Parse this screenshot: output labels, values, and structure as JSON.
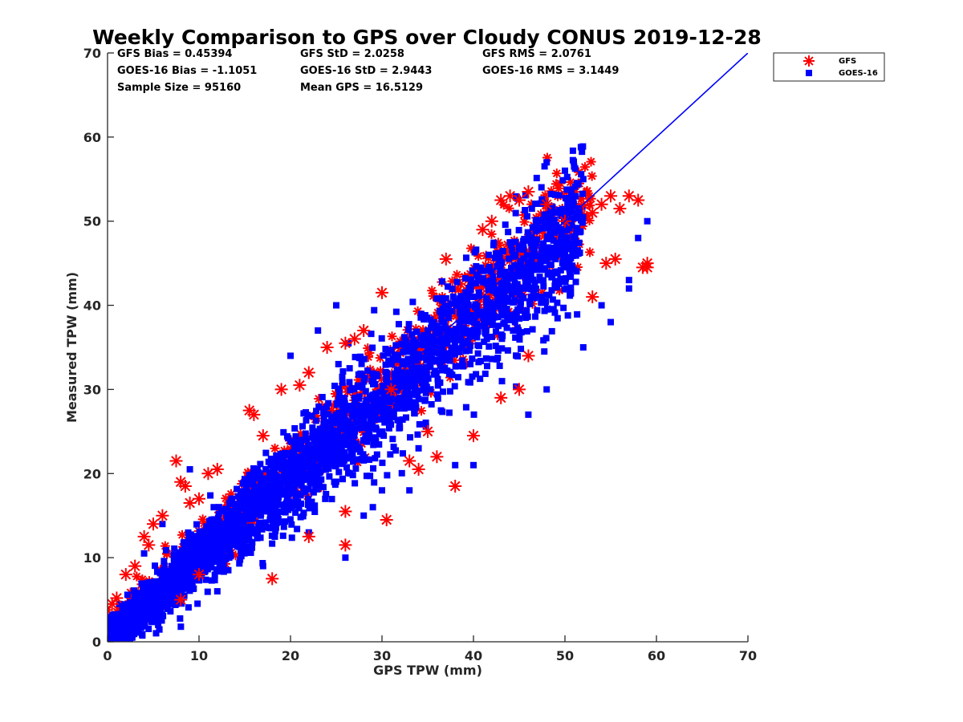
{
  "chart_data": {
    "type": "scatter",
    "title": "Weekly Comparison to GPS over Cloudy CONUS 2019-12-28",
    "xlabel": "GPS TPW (mm)",
    "ylabel": "Measured TPW (mm)",
    "xlim": [
      0,
      70
    ],
    "ylim": [
      0,
      70
    ],
    "xticks": [
      "0",
      "10",
      "20",
      "30",
      "40",
      "50",
      "60",
      "70"
    ],
    "yticks": [
      "0",
      "10",
      "20",
      "30",
      "40",
      "50",
      "60",
      "70"
    ],
    "grid": false,
    "legend_position": "outside-top-right",
    "stats": [
      [
        "GFS Bias = 0.45394",
        "GFS StD = 2.0258",
        "GFS RMS = 2.0761"
      ],
      [
        "GOES-16 Bias = -1.1051",
        "GOES-16 StD = 2.9443",
        "GOES-16 RMS = 3.1449"
      ],
      [
        "Sample Size = 95160",
        "Mean GPS = 16.5129"
      ]
    ],
    "reference_line": {
      "x": [
        0,
        70
      ],
      "y": [
        0,
        70
      ],
      "color": "#0000ff"
    },
    "series": [
      {
        "name": "GFS",
        "marker": "asterisk",
        "color": "#ff0000",
        "points": [
          [
            0.5,
            4.5
          ],
          [
            1,
            5.2
          ],
          [
            2,
            8
          ],
          [
            3,
            9
          ],
          [
            4,
            12.5
          ],
          [
            4.5,
            11.5
          ],
          [
            5,
            14
          ],
          [
            6,
            15
          ],
          [
            7.5,
            21.5
          ],
          [
            8,
            19
          ],
          [
            8.5,
            18.5
          ],
          [
            9,
            16.5
          ],
          [
            10,
            17
          ],
          [
            11,
            20
          ],
          [
            12,
            20.5
          ],
          [
            15.5,
            27.5
          ],
          [
            16,
            27
          ],
          [
            17,
            24.5
          ],
          [
            19,
            30
          ],
          [
            21,
            30.5
          ],
          [
            22,
            32
          ],
          [
            24,
            35
          ],
          [
            26,
            35.5
          ],
          [
            27,
            36
          ],
          [
            28,
            37
          ],
          [
            30,
            41.5
          ],
          [
            30.5,
            14.5
          ],
          [
            26,
            11.5
          ],
          [
            31,
            30
          ],
          [
            33,
            21.5
          ],
          [
            34,
            20.5
          ],
          [
            37,
            45.5
          ],
          [
            38,
            18.5
          ],
          [
            40,
            24.5
          ],
          [
            41,
            49
          ],
          [
            42,
            50
          ],
          [
            43,
            52.5
          ],
          [
            44,
            53
          ],
          [
            45,
            52.5
          ],
          [
            46,
            53.5
          ],
          [
            48,
            52
          ],
          [
            50,
            50
          ],
          [
            52,
            52
          ],
          [
            53,
            51
          ],
          [
            54,
            52
          ],
          [
            55,
            53
          ],
          [
            54.5,
            45
          ],
          [
            55.5,
            45.5
          ],
          [
            56,
            51.5
          ],
          [
            57,
            53
          ],
          [
            58,
            52.5
          ],
          [
            58.5,
            44.5
          ],
          [
            59,
            45
          ],
          [
            59,
            44.5
          ],
          [
            53,
            41
          ],
          [
            45,
            30
          ],
          [
            43,
            29
          ],
          [
            46,
            34
          ],
          [
            36,
            22
          ],
          [
            35,
            25
          ],
          [
            26,
            15.5
          ],
          [
            18,
            7.5
          ],
          [
            22,
            12.5
          ],
          [
            10,
            8
          ],
          [
            8,
            5
          ]
        ]
      },
      {
        "name": "GOES-16",
        "marker": "square",
        "color": "#0000ff",
        "points": [
          [
            1,
            3
          ],
          [
            2,
            4
          ],
          [
            3,
            5.5
          ],
          [
            5,
            7
          ],
          [
            7,
            9
          ],
          [
            9,
            11
          ],
          [
            11,
            13
          ],
          [
            13,
            15
          ],
          [
            15,
            17
          ],
          [
            17,
            19
          ],
          [
            19,
            21
          ],
          [
            21,
            23
          ],
          [
            23,
            25
          ],
          [
            25,
            27
          ],
          [
            27,
            29
          ],
          [
            29,
            31
          ],
          [
            31,
            33
          ],
          [
            33,
            35
          ],
          [
            35,
            37
          ],
          [
            37,
            39
          ],
          [
            39,
            41
          ],
          [
            41,
            43
          ],
          [
            43,
            45
          ],
          [
            45,
            47
          ],
          [
            47,
            49
          ],
          [
            49,
            51
          ],
          [
            50,
            56
          ],
          [
            51,
            56.5
          ],
          [
            48,
            57
          ],
          [
            52,
            55
          ],
          [
            26,
            10
          ],
          [
            25,
            40
          ],
          [
            30,
            18
          ],
          [
            34,
            23
          ],
          [
            38,
            21
          ],
          [
            40,
            21
          ],
          [
            48,
            30
          ],
          [
            46,
            27
          ],
          [
            52,
            35
          ],
          [
            55,
            38
          ],
          [
            57,
            42
          ],
          [
            59,
            50
          ],
          [
            58,
            48
          ],
          [
            57,
            43
          ],
          [
            54,
            40
          ],
          [
            33,
            18
          ],
          [
            29,
            16
          ],
          [
            22,
            13
          ],
          [
            17,
            9
          ],
          [
            12,
            6
          ],
          [
            20,
            34
          ],
          [
            23,
            37
          ],
          [
            9,
            20.5
          ],
          [
            6,
            14
          ],
          [
            4,
            10.5
          ],
          [
            28,
            15
          ]
        ]
      }
    ]
  }
}
